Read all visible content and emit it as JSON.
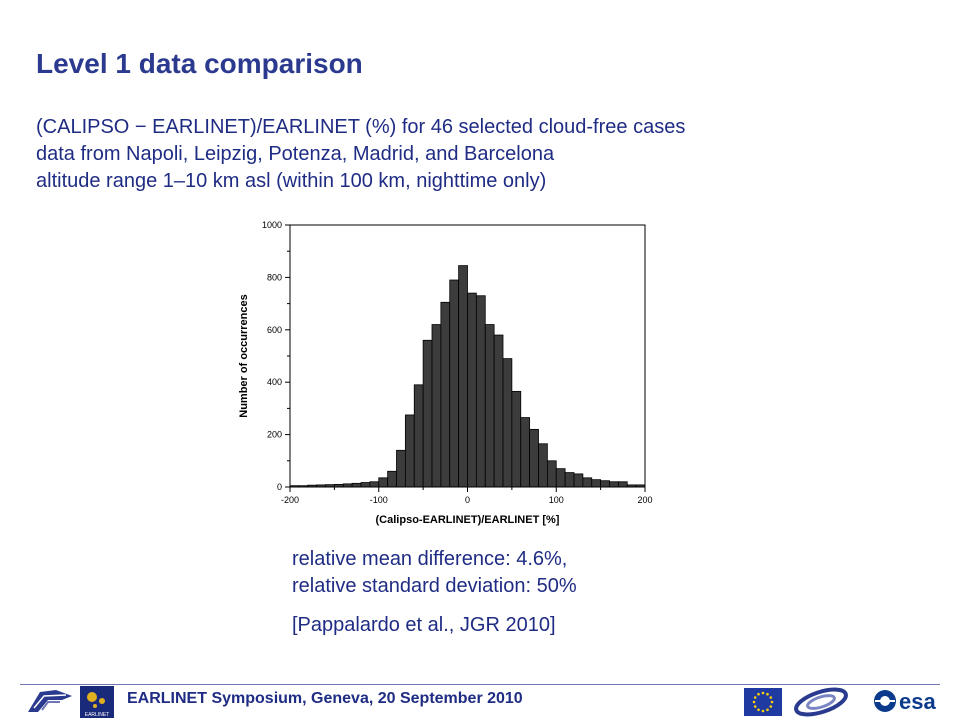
{
  "slide": {
    "title": "Level 1 data comparison",
    "subtitle_lines": [
      "(CALIPSO − EARLINET)/EARLINET (%) for 46 selected cloud-free cases",
      "data from Napoli, Leipzig, Potenza, Madrid, and Barcelona",
      "altitude range 1–10 km asl (within 100 km, nighttime only)"
    ],
    "stats": {
      "line1": "relative mean difference: 4.6%,",
      "line2": "relative standard deviation: 50%",
      "reference": "[Pappalardo et al., JGR 2010]"
    },
    "footer": {
      "text": "EARLINET Symposium, Geneva, 20 September 2010",
      "logos": [
        "ift",
        "earlinet",
        "eu-flag",
        "esa-partner",
        "esa"
      ]
    },
    "colors": {
      "title": "#2b3a8f",
      "text": "#1f2c84",
      "bar_fill": "#3c3c3c",
      "eu_blue": "#1f3aa0",
      "eu_star": "#ffd200"
    }
  },
  "chart_data": {
    "type": "bar",
    "xlabel": "(Calipso-EARLINET)/EARLINET [%]",
    "ylabel": "Number of occurrences",
    "xlim": [
      -200,
      200
    ],
    "ylim": [
      0,
      1000
    ],
    "xticks": [
      -200,
      -100,
      0,
      100,
      200
    ],
    "yticks": [
      0,
      200,
      400,
      600,
      800,
      1000
    ],
    "grid": false,
    "bin_width": 10,
    "bins": [
      {
        "x": -200,
        "y": 5
      },
      {
        "x": -190,
        "y": 5
      },
      {
        "x": -180,
        "y": 7
      },
      {
        "x": -170,
        "y": 8
      },
      {
        "x": -160,
        "y": 9
      },
      {
        "x": -150,
        "y": 10
      },
      {
        "x": -140,
        "y": 12
      },
      {
        "x": -130,
        "y": 14
      },
      {
        "x": -120,
        "y": 17
      },
      {
        "x": -110,
        "y": 20
      },
      {
        "x": -100,
        "y": 35
      },
      {
        "x": -90,
        "y": 60
      },
      {
        "x": -80,
        "y": 140
      },
      {
        "x": -70,
        "y": 275
      },
      {
        "x": -60,
        "y": 390
      },
      {
        "x": -50,
        "y": 560
      },
      {
        "x": -40,
        "y": 620
      },
      {
        "x": -30,
        "y": 705
      },
      {
        "x": -20,
        "y": 790
      },
      {
        "x": -10,
        "y": 845
      },
      {
        "x": 0,
        "y": 740
      },
      {
        "x": 10,
        "y": 730
      },
      {
        "x": 20,
        "y": 620
      },
      {
        "x": 30,
        "y": 580
      },
      {
        "x": 40,
        "y": 490
      },
      {
        "x": 50,
        "y": 365
      },
      {
        "x": 60,
        "y": 265
      },
      {
        "x": 70,
        "y": 220
      },
      {
        "x": 80,
        "y": 165
      },
      {
        "x": 90,
        "y": 100
      },
      {
        "x": 100,
        "y": 70
      },
      {
        "x": 110,
        "y": 55
      },
      {
        "x": 120,
        "y": 50
      },
      {
        "x": 130,
        "y": 35
      },
      {
        "x": 140,
        "y": 28
      },
      {
        "x": 150,
        "y": 24
      },
      {
        "x": 160,
        "y": 20
      },
      {
        "x": 170,
        "y": 20
      },
      {
        "x": 180,
        "y": 8
      },
      {
        "x": 190,
        "y": 8
      }
    ]
  }
}
